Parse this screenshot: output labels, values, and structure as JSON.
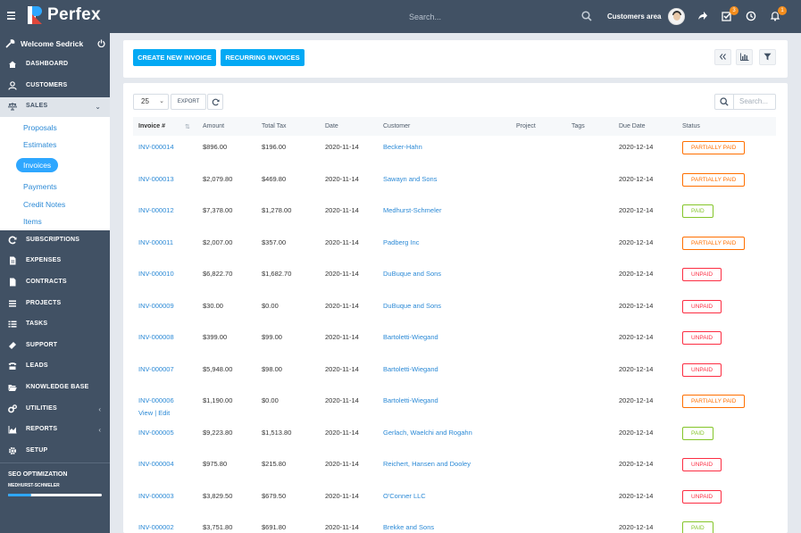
{
  "header": {
    "logo_text": "Perfex",
    "search_placeholder": "Search...",
    "customers_area": "Customers area",
    "tasks_badge": "3",
    "notifications_badge": "1"
  },
  "sidebar": {
    "welcome": "Welcome Sedrick",
    "menu": [
      {
        "label": "DASHBOARD",
        "icon": "dashboard-icon"
      },
      {
        "label": "CUSTOMERS",
        "icon": "user-icon"
      },
      {
        "label": "SALES",
        "icon": "balance-scale-icon"
      },
      {
        "label": "SUBSCRIPTIONS",
        "icon": "refresh-icon"
      },
      {
        "label": "EXPENSES",
        "icon": "file-text-icon"
      },
      {
        "label": "CONTRACTS",
        "icon": "file-icon"
      },
      {
        "label": "PROJECTS",
        "icon": "bars-icon"
      },
      {
        "label": "TASKS",
        "icon": "tasks-icon"
      },
      {
        "label": "SUPPORT",
        "icon": "ticket-icon"
      },
      {
        "label": "LEADS",
        "icon": "tty-icon"
      },
      {
        "label": "KNOWLEDGE BASE",
        "icon": "folder-open-icon"
      },
      {
        "label": "UTILITIES",
        "icon": "cogs-icon"
      },
      {
        "label": "REPORTS",
        "icon": "area-chart-icon"
      },
      {
        "label": "SETUP",
        "icon": "cog-icon"
      }
    ],
    "sales_submenu": [
      "Proposals",
      "Estimates",
      "Invoices",
      "Payments",
      "Credit Notes",
      "Items"
    ],
    "seo": {
      "title": "SEO OPTIMIZATION",
      "subtitle": "MEDHURST-SCHMELER",
      "progress": 0.25
    }
  },
  "toolbar": {
    "create_invoice": "CREATE NEW INVOICE",
    "recurring_invoices": "RECURRING INVOICES"
  },
  "table_controls": {
    "page_length": "25",
    "export": "EXPORT",
    "search_placeholder": "Search..."
  },
  "table": {
    "columns": [
      "Invoice #",
      "Amount",
      "Total Tax",
      "Date",
      "Customer",
      "Project",
      "Tags",
      "Due Date",
      "Status"
    ],
    "row_actions": "View | Edit",
    "rows": [
      {
        "number": "INV-000014",
        "amount": "$896.00",
        "tax": "$196.00",
        "date": "2020-11-14",
        "customer": "Becker-Hahn",
        "due": "2020-12-14",
        "status": "PARTIALLY PAID",
        "kind": "partial"
      },
      {
        "number": "INV-000013",
        "amount": "$2,079.80",
        "tax": "$469.80",
        "date": "2020-11-14",
        "customer": "Sawayn and Sons",
        "due": "2020-12-14",
        "status": "PARTIALLY PAID",
        "kind": "partial"
      },
      {
        "number": "INV-000012",
        "amount": "$7,378.00",
        "tax": "$1,278.00",
        "date": "2020-11-14",
        "customer": "Medhurst-Schmeler",
        "due": "2020-12-14",
        "status": "PAID",
        "kind": "paid"
      },
      {
        "number": "INV-000011",
        "amount": "$2,007.00",
        "tax": "$357.00",
        "date": "2020-11-14",
        "customer": "Padberg Inc",
        "due": "2020-12-14",
        "status": "PARTIALLY PAID",
        "kind": "partial"
      },
      {
        "number": "INV-000010",
        "amount": "$6,822.70",
        "tax": "$1,682.70",
        "date": "2020-11-14",
        "customer": "DuBuque and Sons",
        "due": "2020-12-14",
        "status": "UNPAID",
        "kind": "unpaid"
      },
      {
        "number": "INV-000009",
        "amount": "$30.00",
        "tax": "$0.00",
        "date": "2020-11-14",
        "customer": "DuBuque and Sons",
        "due": "2020-12-14",
        "status": "UNPAID",
        "kind": "unpaid"
      },
      {
        "number": "INV-000008",
        "amount": "$399.00",
        "tax": "$99.00",
        "date": "2020-11-14",
        "customer": "Bartoletti-Wiegand",
        "due": "2020-12-14",
        "status": "UNPAID",
        "kind": "unpaid"
      },
      {
        "number": "INV-000007",
        "amount": "$5,948.00",
        "tax": "$98.00",
        "date": "2020-11-14",
        "customer": "Bartoletti-Wiegand",
        "due": "2020-12-14",
        "status": "UNPAID",
        "kind": "unpaid"
      },
      {
        "number": "INV-000006",
        "amount": "$1,190.00",
        "tax": "$0.00",
        "date": "2020-11-14",
        "customer": "Bartoletti-Wiegand",
        "due": "2020-12-14",
        "status": "PARTIALLY PAID",
        "kind": "partial"
      },
      {
        "number": "INV-000005",
        "amount": "$9,223.80",
        "tax": "$1,513.80",
        "date": "2020-11-14",
        "customer": "Gerlach, Waelchi and Rogahn",
        "due": "2020-12-14",
        "status": "PAID",
        "kind": "paid"
      },
      {
        "number": "INV-000004",
        "amount": "$975.80",
        "tax": "$215.80",
        "date": "2020-11-14",
        "customer": "Reichert, Hansen and Dooley",
        "due": "2020-12-14",
        "status": "UNPAID",
        "kind": "unpaid"
      },
      {
        "number": "INV-000003",
        "amount": "$3,829.50",
        "tax": "$679.50",
        "date": "2020-11-14",
        "customer": "O'Conner LLC",
        "due": "2020-12-14",
        "status": "UNPAID",
        "kind": "unpaid"
      },
      {
        "number": "INV-000002",
        "amount": "$3,751.80",
        "tax": "$691.80",
        "date": "2020-11-14",
        "customer": "Brekke and Sons",
        "due": "2020-12-14",
        "status": "PAID",
        "kind": "paid"
      }
    ]
  },
  "colors": {
    "topbar": "#415164",
    "primary": "#03a9f4",
    "link": "#2c8ad6",
    "partial": "#ff6f00",
    "paid": "#84c529",
    "unpaid": "#fc2d42"
  }
}
